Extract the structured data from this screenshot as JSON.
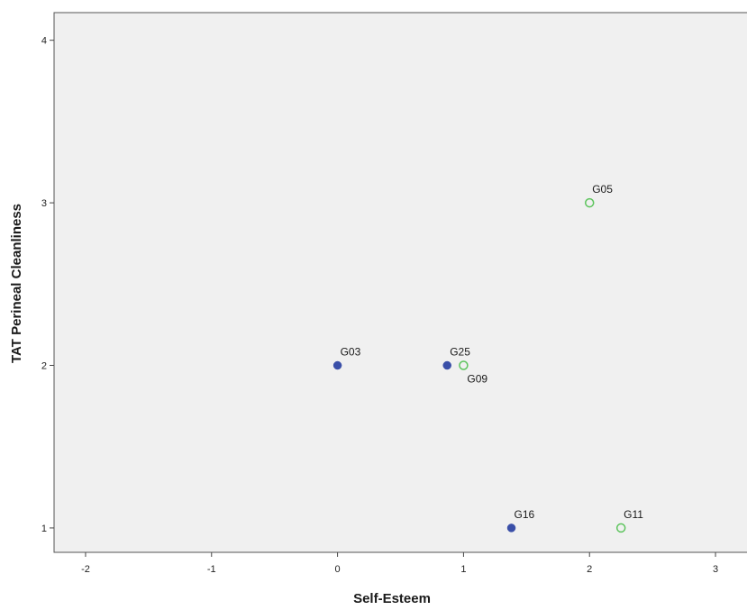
{
  "chart_data": {
    "type": "scatter",
    "title": "",
    "xlabel": "Self-Esteem",
    "ylabel": "TAT Perineal Cleanliness",
    "xlim": [
      -2.25,
      3.25
    ],
    "ylim": [
      0.85,
      4.17
    ],
    "xticks": [
      -2,
      -1,
      0,
      1,
      2,
      3
    ],
    "yticks": [
      1,
      2,
      3,
      4
    ],
    "grid": false,
    "plot_background": "#f0f0f0",
    "series": [
      {
        "marker": "filled-circle",
        "color": "#3a4fa8",
        "points": [
          {
            "label": "G03",
            "x": 0.0,
            "y": 2
          },
          {
            "label": "G25",
            "x": 0.87,
            "y": 2
          },
          {
            "label": "G16",
            "x": 1.38,
            "y": 1
          }
        ]
      },
      {
        "marker": "hollow-circle",
        "color": "#5cc45c",
        "points": [
          {
            "label": "G05",
            "x": 2.0,
            "y": 3
          },
          {
            "label": "G09",
            "x": 1.0,
            "y": 2
          },
          {
            "label": "G11",
            "x": 2.25,
            "y": 1
          }
        ]
      }
    ]
  }
}
